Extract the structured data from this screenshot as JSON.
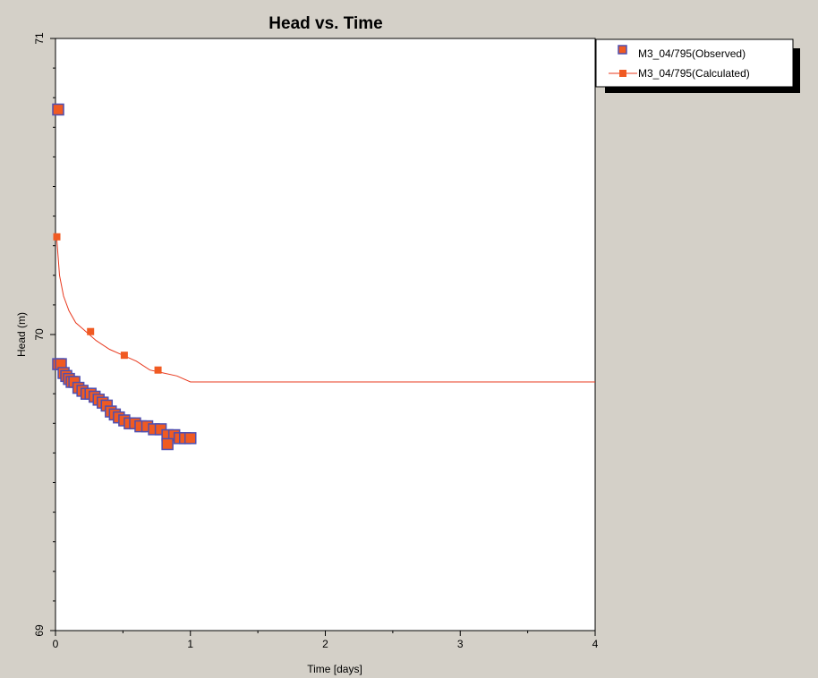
{
  "chart_data": {
    "type": "scatter",
    "title": "Head vs. Time",
    "xlabel": "Time  [days]",
    "ylabel": "Head (m)",
    "xlim": [
      0,
      4
    ],
    "ylim": [
      69,
      71
    ],
    "x_ticks": [
      0,
      1,
      2,
      3,
      4
    ],
    "x_tick_labels": [
      "0",
      "1",
      "2",
      "3",
      "4"
    ],
    "y_ticks": [
      69,
      70,
      71
    ],
    "y_tick_labels": [
      "69",
      "70",
      "71"
    ],
    "grid": false,
    "legend_position": "top-right",
    "series": [
      {
        "name": "M3_04/795(Observed)",
        "kind": "markers",
        "marker": "square",
        "fill": "#f05a22",
        "stroke": "#4f4fb0",
        "x": [
          0.02,
          0.04,
          0.06,
          0.08,
          0.1,
          0.12,
          0.14,
          0.17,
          0.2,
          0.23,
          0.26,
          0.29,
          0.32,
          0.35,
          0.38,
          0.41,
          0.44,
          0.47,
          0.51,
          0.55,
          0.59,
          0.63,
          0.68,
          0.73,
          0.78,
          0.83,
          0.88,
          0.92,
          0.96,
          1.0
        ],
        "y": [
          69.9,
          69.9,
          69.87,
          69.86,
          69.85,
          69.84,
          69.84,
          69.82,
          69.81,
          69.8,
          69.8,
          69.79,
          69.78,
          69.77,
          69.76,
          69.74,
          69.73,
          69.72,
          69.71,
          69.7,
          69.7,
          69.69,
          69.69,
          69.68,
          69.68,
          69.66,
          69.66,
          69.65,
          69.65,
          69.65
        ]
      },
      {
        "name": "",
        "kind": "markers",
        "marker": "square",
        "fill": "#f05a22",
        "stroke": "#4f4fb0",
        "x": [
          0.02,
          0.83
        ],
        "y": [
          70.76,
          69.63
        ]
      },
      {
        "name": "M3_04/795(Calculated)",
        "kind": "line-markers",
        "color": "#e8391e",
        "line_x": [
          0.01,
          0.03,
          0.06,
          0.1,
          0.15,
          0.2,
          0.25,
          0.3,
          0.4,
          0.5,
          0.6,
          0.7,
          0.8,
          0.9,
          1.0,
          2.5,
          4.0
        ],
        "line_y": [
          70.32,
          70.2,
          70.13,
          70.08,
          70.04,
          70.02,
          70.0,
          69.98,
          69.95,
          69.93,
          69.91,
          69.88,
          69.87,
          69.86,
          69.84,
          69.84,
          69.84
        ],
        "x": [
          0.01,
          0.26,
          0.51,
          0.76
        ],
        "y": [
          70.33,
          70.01,
          69.93,
          69.88
        ]
      }
    ]
  }
}
